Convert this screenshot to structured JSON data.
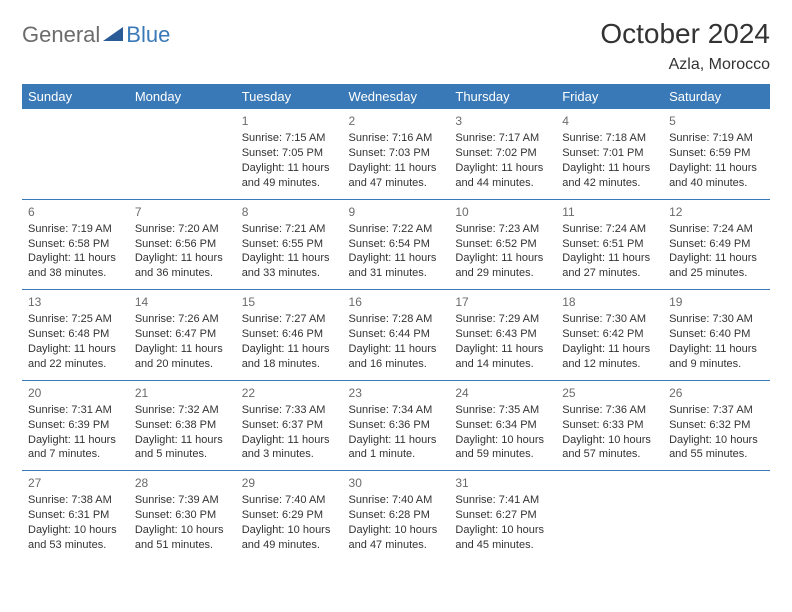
{
  "logo": {
    "general": "General",
    "blue": "Blue"
  },
  "title": "October 2024",
  "location": "Azla, Morocco",
  "colors": {
    "header_bg": "#3a79b7",
    "header_text": "#ffffff",
    "border": "#3a79b7",
    "daynum": "#6b6b6b",
    "body_text": "#333333",
    "logo_gray": "#6c6c6c",
    "logo_blue": "#3a79b7",
    "page_bg": "#ffffff"
  },
  "dayHeaders": [
    "Sunday",
    "Monday",
    "Tuesday",
    "Wednesday",
    "Thursday",
    "Friday",
    "Saturday"
  ],
  "weeks": [
    [
      null,
      null,
      {
        "n": "1",
        "sr": "Sunrise: 7:15 AM",
        "ss": "Sunset: 7:05 PM",
        "dl": "Daylight: 11 hours and 49 minutes."
      },
      {
        "n": "2",
        "sr": "Sunrise: 7:16 AM",
        "ss": "Sunset: 7:03 PM",
        "dl": "Daylight: 11 hours and 47 minutes."
      },
      {
        "n": "3",
        "sr": "Sunrise: 7:17 AM",
        "ss": "Sunset: 7:02 PM",
        "dl": "Daylight: 11 hours and 44 minutes."
      },
      {
        "n": "4",
        "sr": "Sunrise: 7:18 AM",
        "ss": "Sunset: 7:01 PM",
        "dl": "Daylight: 11 hours and 42 minutes."
      },
      {
        "n": "5",
        "sr": "Sunrise: 7:19 AM",
        "ss": "Sunset: 6:59 PM",
        "dl": "Daylight: 11 hours and 40 minutes."
      }
    ],
    [
      {
        "n": "6",
        "sr": "Sunrise: 7:19 AM",
        "ss": "Sunset: 6:58 PM",
        "dl": "Daylight: 11 hours and 38 minutes."
      },
      {
        "n": "7",
        "sr": "Sunrise: 7:20 AM",
        "ss": "Sunset: 6:56 PM",
        "dl": "Daylight: 11 hours and 36 minutes."
      },
      {
        "n": "8",
        "sr": "Sunrise: 7:21 AM",
        "ss": "Sunset: 6:55 PM",
        "dl": "Daylight: 11 hours and 33 minutes."
      },
      {
        "n": "9",
        "sr": "Sunrise: 7:22 AM",
        "ss": "Sunset: 6:54 PM",
        "dl": "Daylight: 11 hours and 31 minutes."
      },
      {
        "n": "10",
        "sr": "Sunrise: 7:23 AM",
        "ss": "Sunset: 6:52 PM",
        "dl": "Daylight: 11 hours and 29 minutes."
      },
      {
        "n": "11",
        "sr": "Sunrise: 7:24 AM",
        "ss": "Sunset: 6:51 PM",
        "dl": "Daylight: 11 hours and 27 minutes."
      },
      {
        "n": "12",
        "sr": "Sunrise: 7:24 AM",
        "ss": "Sunset: 6:49 PM",
        "dl": "Daylight: 11 hours and 25 minutes."
      }
    ],
    [
      {
        "n": "13",
        "sr": "Sunrise: 7:25 AM",
        "ss": "Sunset: 6:48 PM",
        "dl": "Daylight: 11 hours and 22 minutes."
      },
      {
        "n": "14",
        "sr": "Sunrise: 7:26 AM",
        "ss": "Sunset: 6:47 PM",
        "dl": "Daylight: 11 hours and 20 minutes."
      },
      {
        "n": "15",
        "sr": "Sunrise: 7:27 AM",
        "ss": "Sunset: 6:46 PM",
        "dl": "Daylight: 11 hours and 18 minutes."
      },
      {
        "n": "16",
        "sr": "Sunrise: 7:28 AM",
        "ss": "Sunset: 6:44 PM",
        "dl": "Daylight: 11 hours and 16 minutes."
      },
      {
        "n": "17",
        "sr": "Sunrise: 7:29 AM",
        "ss": "Sunset: 6:43 PM",
        "dl": "Daylight: 11 hours and 14 minutes."
      },
      {
        "n": "18",
        "sr": "Sunrise: 7:30 AM",
        "ss": "Sunset: 6:42 PM",
        "dl": "Daylight: 11 hours and 12 minutes."
      },
      {
        "n": "19",
        "sr": "Sunrise: 7:30 AM",
        "ss": "Sunset: 6:40 PM",
        "dl": "Daylight: 11 hours and 9 minutes."
      }
    ],
    [
      {
        "n": "20",
        "sr": "Sunrise: 7:31 AM",
        "ss": "Sunset: 6:39 PM",
        "dl": "Daylight: 11 hours and 7 minutes."
      },
      {
        "n": "21",
        "sr": "Sunrise: 7:32 AM",
        "ss": "Sunset: 6:38 PM",
        "dl": "Daylight: 11 hours and 5 minutes."
      },
      {
        "n": "22",
        "sr": "Sunrise: 7:33 AM",
        "ss": "Sunset: 6:37 PM",
        "dl": "Daylight: 11 hours and 3 minutes."
      },
      {
        "n": "23",
        "sr": "Sunrise: 7:34 AM",
        "ss": "Sunset: 6:36 PM",
        "dl": "Daylight: 11 hours and 1 minute."
      },
      {
        "n": "24",
        "sr": "Sunrise: 7:35 AM",
        "ss": "Sunset: 6:34 PM",
        "dl": "Daylight: 10 hours and 59 minutes."
      },
      {
        "n": "25",
        "sr": "Sunrise: 7:36 AM",
        "ss": "Sunset: 6:33 PM",
        "dl": "Daylight: 10 hours and 57 minutes."
      },
      {
        "n": "26",
        "sr": "Sunrise: 7:37 AM",
        "ss": "Sunset: 6:32 PM",
        "dl": "Daylight: 10 hours and 55 minutes."
      }
    ],
    [
      {
        "n": "27",
        "sr": "Sunrise: 7:38 AM",
        "ss": "Sunset: 6:31 PM",
        "dl": "Daylight: 10 hours and 53 minutes."
      },
      {
        "n": "28",
        "sr": "Sunrise: 7:39 AM",
        "ss": "Sunset: 6:30 PM",
        "dl": "Daylight: 10 hours and 51 minutes."
      },
      {
        "n": "29",
        "sr": "Sunrise: 7:40 AM",
        "ss": "Sunset: 6:29 PM",
        "dl": "Daylight: 10 hours and 49 minutes."
      },
      {
        "n": "30",
        "sr": "Sunrise: 7:40 AM",
        "ss": "Sunset: 6:28 PM",
        "dl": "Daylight: 10 hours and 47 minutes."
      },
      {
        "n": "31",
        "sr": "Sunrise: 7:41 AM",
        "ss": "Sunset: 6:27 PM",
        "dl": "Daylight: 10 hours and 45 minutes."
      },
      null,
      null
    ]
  ]
}
